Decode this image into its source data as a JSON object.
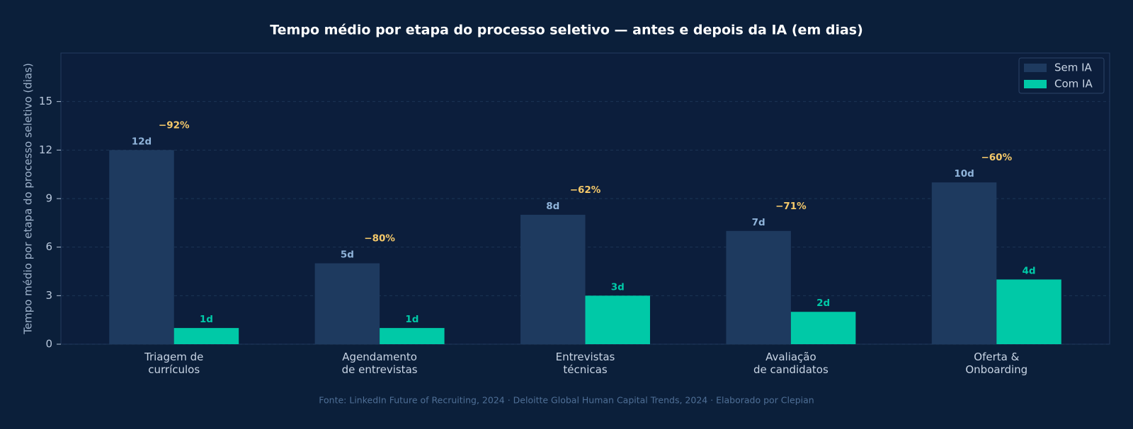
{
  "chart_data": {
    "type": "bar",
    "title": "Tempo médio por etapa do processo seletivo — antes e depois da IA (em dias)",
    "y_label": "Tempo médio por etapa do processo seletivo (dias)",
    "source": "Fonte: LinkedIn Future of Recruiting, 2024 · Deloitte Global Human Capital Trends, 2024 · Elaborado por Clepian",
    "categories": [
      [
        "Triagem de",
        "currículos"
      ],
      [
        "Agendamento",
        "de entrevistas"
      ],
      [
        "Entrevistas",
        "técnicas"
      ],
      [
        "Avaliação",
        "de candidatos"
      ],
      [
        "Oferta &",
        "Onboarding"
      ]
    ],
    "series": [
      {
        "name": "Sem IA",
        "color": "#1e3a5f",
        "label_color": "#8fb3d9",
        "values": [
          12,
          5,
          8,
          7,
          10
        ],
        "value_labels": [
          "12d",
          "5d",
          "8d",
          "7d",
          "10d"
        ]
      },
      {
        "name": "Com IA",
        "color": "#00c9a7",
        "label_color": "#00c9a7",
        "values": [
          1,
          1,
          3,
          2,
          4
        ],
        "value_labels": [
          "1d",
          "1d",
          "3d",
          "2d",
          "4d"
        ]
      }
    ],
    "annotations": [
      "−92%",
      "−80%",
      "−62%",
      "−71%",
      "−60%"
    ],
    "annotation_color": "#f5c96a",
    "ylim": [
      0,
      18
    ],
    "yticks": [
      0,
      3,
      6,
      9,
      12,
      15
    ],
    "grid": true,
    "legend": "upper right"
  }
}
